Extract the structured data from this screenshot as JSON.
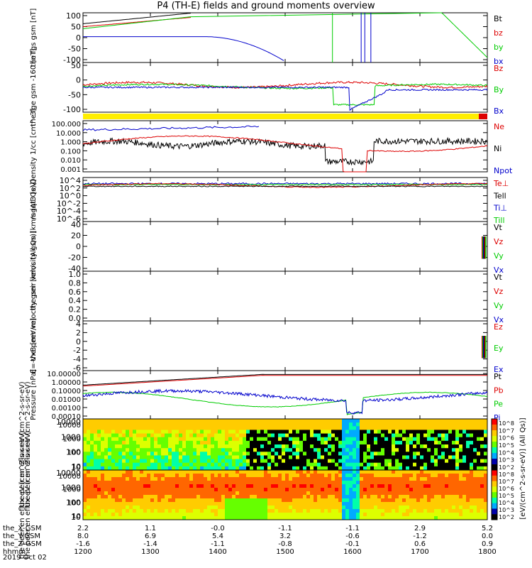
{
  "title": "P4 (TH-E) fields and ground moments overview",
  "colors": {
    "black": "#000000",
    "red": "#dd0000",
    "green": "#00cc00",
    "blue": "#0000cc",
    "yellow": "#ffee00"
  },
  "x_axis": {
    "rows": [
      {
        "name": "the_X-GSM",
        "values": [
          "2.2",
          "1.1",
          "-0.0",
          "-1.1",
          "-1.1",
          "2.9",
          "5.2"
        ]
      },
      {
        "name": "the_Y-GSM",
        "values": [
          "8.0",
          "6.9",
          "5.4",
          "3.2",
          "-0.6",
          "-1.2",
          "0.0"
        ]
      },
      {
        "name": "the_Z-GSM",
        "values": [
          "-1.6",
          "-1.4",
          "-1.1",
          "-0.8",
          "-0.1",
          "0.6",
          "0.9"
        ]
      },
      {
        "name": "hhmm",
        "values": [
          "1200",
          "1300",
          "1400",
          "1500",
          "1600",
          "1700",
          "1800"
        ]
      }
    ],
    "date": "2019 Oct 02"
  },
  "spec_colorbar_ticks": [
    "10^8",
    "10^7",
    "10^6",
    "10^5",
    "10^4",
    "10^3",
    "10^2"
  ],
  "spec_colorbar_label": "[eV/(cm^2-s-sr-eV)] (All Qs)]",
  "chart_data": [
    {
      "type": "line",
      "ylabel": "the fgs gsm [nT]",
      "ylim": [
        -100,
        100
      ],
      "yticks": [
        "100",
        "50",
        "0",
        "-50",
        "-100"
      ],
      "legend": [
        "Bt",
        "bz",
        "by",
        "bx"
      ]
    },
    {
      "type": "line",
      "ylabel": "the fge gsm -160 [nT]",
      "ylim": [
        -120,
        60
      ],
      "yticks": [
        "50",
        "0",
        "-50",
        "-100"
      ],
      "legend": [
        "Bz",
        "By",
        "Bx"
      ]
    },
    {
      "type": "line",
      "ylabel": "Density 1/cc [cm^-3]",
      "scale": "log",
      "yticks": [
        "100.000",
        "10.000",
        "1.000",
        "0.100",
        "0.010",
        "0.001"
      ],
      "legend": [
        "Ne",
        "Ni",
        "Npot"
      ]
    },
    {
      "type": "line",
      "ylabel": "mgqt3 [eV]",
      "scale": "log",
      "yticks": [
        "10^4",
        "10^2",
        "10^0",
        "10^-2",
        "10^-4",
        "10^-6"
      ],
      "legend": [
        "Te⊥",
        "Tell",
        "Ti⊥",
        "Till"
      ]
    },
    {
      "type": "line",
      "ylabel": "the peir velocity gsm [km/s (All Qs)]",
      "ylim": [
        -40,
        40
      ],
      "yticks": [
        "40",
        "20",
        "0",
        "-20",
        "-40"
      ],
      "legend": [
        "Vt",
        "Vz",
        "Vy",
        "Vx"
      ]
    },
    {
      "type": "line",
      "ylabel": "the peer velocity gsm [km/s (All Qs)]",
      "ylim": [
        0,
        1
      ],
      "yticks": [
        "1.0",
        "0.8",
        "0.6",
        "0.4",
        "0.2",
        "0.0"
      ],
      "legend": [
        "Vt",
        "Vz",
        "Vy",
        "Vx"
      ]
    },
    {
      "type": "line",
      "ylabel": "E=-VxB [mV/m]",
      "ylim": [
        -6,
        4
      ],
      "yticks": [
        "4",
        "2",
        "0",
        "-2",
        "-4",
        "-6"
      ],
      "legend": [
        "Ez",
        "Ey",
        "Ex"
      ]
    },
    {
      "type": "line",
      "ylabel": "Pressure [nPa]",
      "scale": "log",
      "yticks": [
        "10.00000",
        "1.00000",
        "0.10000",
        "0.01000",
        "0.00100",
        "0.00010"
      ],
      "legend": [
        "Pt",
        "Pb",
        "Pe",
        "Pi"
      ]
    },
    {
      "type": "heatmap",
      "ylabel": "the peir en eflux eV (cm^2-s-sr-eV)",
      "yticks": [
        "10000",
        "1000",
        "100",
        "10"
      ]
    },
    {
      "type": "heatmap",
      "ylabel": "the peer en eflux eV (cm^2-s-sr-eV)",
      "yticks": [
        "10000",
        "1000",
        "100",
        "10"
      ]
    }
  ]
}
